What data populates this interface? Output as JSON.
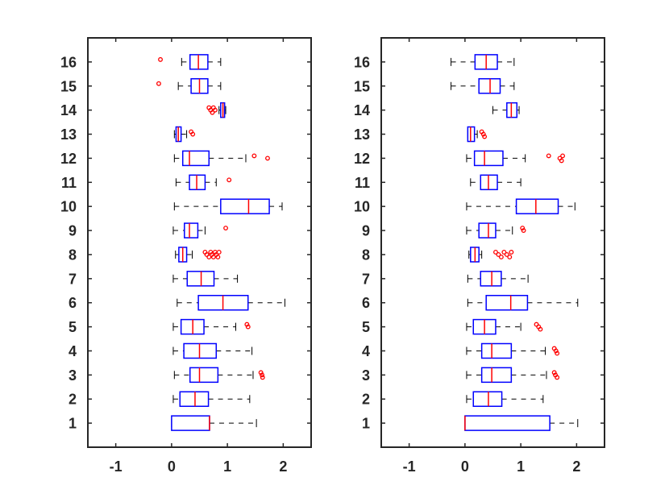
{
  "colors": {
    "box": "#0000ff",
    "median": "#ff0000",
    "whisker": "#000000",
    "outlier": "#ff0000",
    "axis": "#262626"
  },
  "chart_data": [
    {
      "type": "boxplot",
      "orientation": "horizontal",
      "xlim": [
        -1.5,
        2.5
      ],
      "x_ticks": [
        "-1",
        "0",
        "1",
        "2"
      ],
      "x_tick_values": [
        -1,
        0,
        1,
        2
      ],
      "categories": [
        "1",
        "2",
        "3",
        "4",
        "5",
        "6",
        "7",
        "8",
        "9",
        "10",
        "11",
        "12",
        "13",
        "14",
        "15",
        "16"
      ],
      "grid": false,
      "boxes": [
        {
          "label": "1",
          "wmin": 0.0,
          "q1": 0.0,
          "median": 0.68,
          "q3": 0.68,
          "wmax": 1.52,
          "outliers": []
        },
        {
          "label": "2",
          "wmin": 0.03,
          "q1": 0.15,
          "median": 0.42,
          "q3": 0.66,
          "wmax": 1.4,
          "outliers": []
        },
        {
          "label": "3",
          "wmin": 0.05,
          "q1": 0.33,
          "median": 0.5,
          "q3": 0.83,
          "wmax": 1.46,
          "outliers": [
            1.6,
            1.62,
            1.63
          ]
        },
        {
          "label": "4",
          "wmin": 0.03,
          "q1": 0.22,
          "median": 0.5,
          "q3": 0.8,
          "wmax": 1.44,
          "outliers": []
        },
        {
          "label": "5",
          "wmin": 0.03,
          "q1": 0.17,
          "median": 0.38,
          "q3": 0.58,
          "wmax": 1.15,
          "outliers": [
            1.35,
            1.37
          ]
        },
        {
          "label": "6",
          "wmin": 0.1,
          "q1": 0.48,
          "median": 0.92,
          "q3": 1.37,
          "wmax": 2.03,
          "outliers": []
        },
        {
          "label": "7",
          "wmin": 0.03,
          "q1": 0.28,
          "median": 0.53,
          "q3": 0.76,
          "wmax": 1.18,
          "outliers": []
        },
        {
          "label": "8",
          "wmin": 0.07,
          "q1": 0.13,
          "median": 0.2,
          "q3": 0.27,
          "wmax": 0.37,
          "outliers": [
            0.6,
            0.63,
            0.67,
            0.7,
            0.72,
            0.75,
            0.78,
            0.8,
            0.83,
            0.85
          ]
        },
        {
          "label": "9",
          "wmin": 0.03,
          "q1": 0.23,
          "median": 0.32,
          "q3": 0.47,
          "wmax": 0.6,
          "outliers": [
            0.97
          ]
        },
        {
          "label": "10",
          "wmin": 0.05,
          "q1": 0.88,
          "median": 1.38,
          "q3": 1.75,
          "wmax": 1.98,
          "outliers": []
        },
        {
          "label": "11",
          "wmin": 0.08,
          "q1": 0.32,
          "median": 0.45,
          "q3": 0.6,
          "wmax": 0.8,
          "outliers": [
            1.03
          ]
        },
        {
          "label": "12",
          "wmin": 0.05,
          "q1": 0.2,
          "median": 0.32,
          "q3": 0.67,
          "wmax": 1.33,
          "outliers": [
            1.48,
            1.72
          ]
        },
        {
          "label": "13",
          "wmin": 0.05,
          "q1": 0.08,
          "median": 0.12,
          "q3": 0.17,
          "wmax": 0.27,
          "outliers": [
            0.35,
            0.38
          ]
        },
        {
          "label": "14",
          "wmin": 0.85,
          "q1": 0.88,
          "median": 0.92,
          "q3": 0.95,
          "wmax": 0.97,
          "outliers": [
            0.67,
            0.7,
            0.73,
            0.75,
            0.78
          ]
        },
        {
          "label": "15",
          "wmin": 0.12,
          "q1": 0.35,
          "median": 0.5,
          "q3": 0.65,
          "wmax": 0.88,
          "outliers": [
            -0.23
          ]
        },
        {
          "label": "16",
          "wmin": 0.18,
          "q1": 0.33,
          "median": 0.48,
          "q3": 0.65,
          "wmax": 0.88,
          "outliers": [
            -0.2
          ]
        }
      ]
    },
    {
      "type": "boxplot",
      "orientation": "horizontal",
      "xlim": [
        -1.5,
        2.5
      ],
      "x_ticks": [
        "-1",
        "0",
        "1",
        "2"
      ],
      "x_tick_values": [
        -1,
        0,
        1,
        2
      ],
      "categories": [
        "1",
        "2",
        "3",
        "4",
        "5",
        "6",
        "7",
        "8",
        "9",
        "10",
        "11",
        "12",
        "13",
        "14",
        "15",
        "16"
      ],
      "grid": false,
      "boxes": [
        {
          "label": "1",
          "wmin": 0.0,
          "q1": 0.0,
          "median": 0.0,
          "q3": 1.52,
          "wmax": 2.02,
          "outliers": []
        },
        {
          "label": "2",
          "wmin": 0.03,
          "q1": 0.15,
          "median": 0.42,
          "q3": 0.66,
          "wmax": 1.4,
          "outliers": []
        },
        {
          "label": "3",
          "wmin": 0.03,
          "q1": 0.3,
          "median": 0.48,
          "q3": 0.83,
          "wmax": 1.46,
          "outliers": [
            1.6,
            1.62,
            1.65
          ]
        },
        {
          "label": "4",
          "wmin": 0.03,
          "q1": 0.3,
          "median": 0.48,
          "q3": 0.83,
          "wmax": 1.44,
          "outliers": [
            1.6,
            1.63,
            1.65
          ]
        },
        {
          "label": "5",
          "wmin": 0.03,
          "q1": 0.15,
          "median": 0.35,
          "q3": 0.55,
          "wmax": 1.0,
          "outliers": [
            1.28,
            1.32,
            1.35
          ]
        },
        {
          "label": "6",
          "wmin": 0.05,
          "q1": 0.38,
          "median": 0.82,
          "q3": 1.12,
          "wmax": 2.02,
          "outliers": []
        },
        {
          "label": "7",
          "wmin": 0.05,
          "q1": 0.28,
          "median": 0.48,
          "q3": 0.65,
          "wmax": 1.13,
          "outliers": []
        },
        {
          "label": "8",
          "wmin": 0.07,
          "q1": 0.1,
          "median": 0.18,
          "q3": 0.25,
          "wmax": 0.3,
          "outliers": [
            0.55,
            0.6,
            0.65,
            0.7,
            0.75,
            0.8,
            0.83
          ]
        },
        {
          "label": "9",
          "wmin": 0.03,
          "q1": 0.25,
          "median": 0.42,
          "q3": 0.55,
          "wmax": 0.85,
          "outliers": [
            1.03,
            1.05
          ]
        },
        {
          "label": "10",
          "wmin": 0.03,
          "q1": 0.92,
          "median": 1.27,
          "q3": 1.67,
          "wmax": 1.97,
          "outliers": []
        },
        {
          "label": "11",
          "wmin": 0.1,
          "q1": 0.28,
          "median": 0.42,
          "q3": 0.58,
          "wmax": 1.0,
          "outliers": []
        },
        {
          "label": "12",
          "wmin": 0.03,
          "q1": 0.17,
          "median": 0.35,
          "q3": 0.68,
          "wmax": 1.08,
          "outliers": [
            1.5,
            1.7,
            1.73,
            1.75
          ]
        },
        {
          "label": "13",
          "wmin": 0.05,
          "q1": 0.05,
          "median": 0.1,
          "q3": 0.17,
          "wmax": 0.22,
          "outliers": [
            0.3,
            0.33,
            0.35
          ]
        },
        {
          "label": "14",
          "wmin": 0.5,
          "q1": 0.75,
          "median": 0.83,
          "q3": 0.93,
          "wmax": 0.97,
          "outliers": []
        },
        {
          "label": "15",
          "wmin": -0.25,
          "q1": 0.25,
          "median": 0.45,
          "q3": 0.63,
          "wmax": 0.88,
          "outliers": []
        },
        {
          "label": "16",
          "wmin": -0.25,
          "q1": 0.18,
          "median": 0.38,
          "q3": 0.58,
          "wmax": 0.88,
          "outliers": []
        }
      ]
    }
  ]
}
